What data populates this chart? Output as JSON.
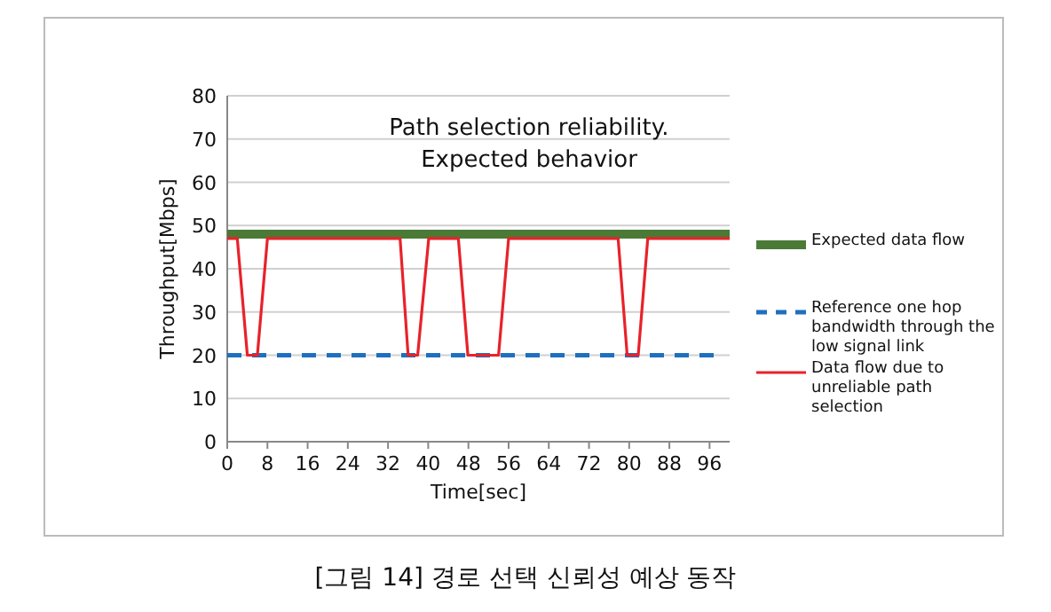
{
  "chart_data": {
    "type": "line",
    "title": "Path selection reliability.\nExpected behavior",
    "xlabel": "Time[sec]",
    "ylabel": "Throughput[Mbps]",
    "xlim": [
      0,
      100
    ],
    "xticks": [
      0,
      8,
      16,
      24,
      32,
      40,
      48,
      56,
      64,
      72,
      80,
      88,
      96
    ],
    "ylim": [
      0,
      80
    ],
    "yticks": [
      0,
      10,
      20,
      30,
      40,
      50,
      60,
      70,
      80
    ],
    "grid": "y",
    "legend": "right",
    "series": [
      {
        "name": "Expected data flow",
        "color": "#4a7a36",
        "line_style": "solid",
        "x": [
          0,
          100
        ],
        "values": [
          48,
          48
        ]
      },
      {
        "name": "Reference one hop bandwidth through the low signal link",
        "color": "#1f6fc0",
        "line_style": "dashed",
        "x": [
          0,
          98
        ],
        "values": [
          20,
          20
        ]
      },
      {
        "name": "Data flow due to unreliable path selection",
        "color": "#e8222a",
        "line_style": "solid",
        "x": [
          0,
          2,
          4,
          6,
          8,
          34.4,
          36,
          37.9,
          40.1,
          46,
          47.9,
          54,
          56,
          77.8,
          79.6,
          81.8,
          83.7,
          100
        ],
        "values": [
          47,
          47,
          20,
          20,
          47,
          47,
          20,
          20,
          47,
          47,
          20,
          20,
          47,
          47,
          20,
          20,
          47,
          47
        ]
      }
    ],
    "annotations": [
      "[그림 14] 경로 선택 신뢰성 예상 동작"
    ]
  }
}
